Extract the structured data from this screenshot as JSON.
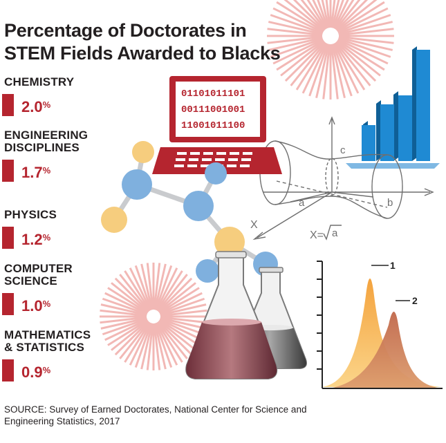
{
  "title_lines": [
    "Percentage of Doctorates in",
    "STEM Fields Awarded to Blacks"
  ],
  "chart_data": {
    "type": "bar",
    "title": "Percentage of Doctorates in STEM Fields Awarded to Blacks",
    "categories": [
      "CHEMISTRY",
      "ENGINEERING DISCIPLINES",
      "PHYSICS",
      "COMPUTER SCIENCE",
      "MATHEMATICS & STATISTICS"
    ],
    "values": [
      2.0,
      1.7,
      1.2,
      1.0,
      0.9
    ],
    "value_labels": [
      "2.0",
      "1.7",
      "1.2",
      "1.0",
      "0.9"
    ],
    "unit": "%",
    "label_lines": [
      [
        "CHEMISTRY"
      ],
      [
        "ENGINEERING",
        "DISCIPLINES"
      ],
      [
        "PHYSICS"
      ],
      [
        "COMPUTER",
        "SCIENCE"
      ],
      [
        "MATHEMATICS",
        "& STATISTICS"
      ]
    ],
    "bar_color": "#b5252f"
  },
  "source_lines": [
    "SOURCE: Survey of Earned Doctorates, National Center for Science and",
    "Engineering Statistics, 2017"
  ],
  "illustration": {
    "laptop_binary": [
      "01101011101",
      "00111001001",
      "11001011100"
    ],
    "diagram_labels": {
      "c": "c",
      "a": "a",
      "b": "b",
      "x": "X",
      "formula_left": "X=",
      "formula_arg": "a"
    },
    "peak_labels": [
      "1",
      "2"
    ],
    "colors": {
      "red": "#b5252f",
      "blue": "#1f8ad3",
      "molecule_blue": "#7fb0de",
      "molecule_yellow": "#f6cd7e",
      "sunburst": "#f2b8b5",
      "peak_orange": "#f6b45a",
      "peak_brown": "#c9764f"
    }
  }
}
